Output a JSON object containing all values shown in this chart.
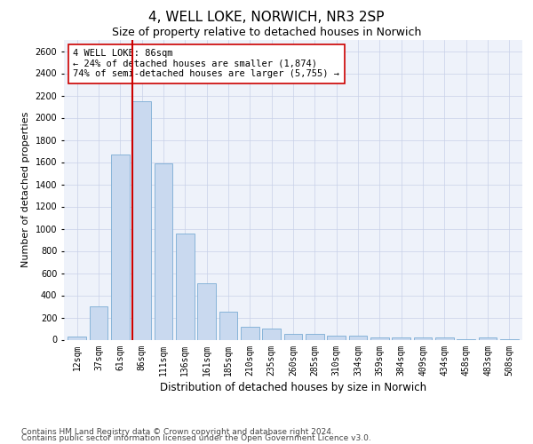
{
  "title": "4, WELL LOKE, NORWICH, NR3 2SP",
  "subtitle": "Size of property relative to detached houses in Norwich",
  "xlabel": "Distribution of detached houses by size in Norwich",
  "ylabel": "Number of detached properties",
  "categories": [
    "12sqm",
    "37sqm",
    "61sqm",
    "86sqm",
    "111sqm",
    "136sqm",
    "161sqm",
    "185sqm",
    "210sqm",
    "235sqm",
    "260sqm",
    "285sqm",
    "310sqm",
    "334sqm",
    "359sqm",
    "384sqm",
    "409sqm",
    "434sqm",
    "458sqm",
    "483sqm",
    "508sqm"
  ],
  "values": [
    25,
    300,
    1670,
    2150,
    1590,
    960,
    505,
    250,
    120,
    100,
    50,
    50,
    35,
    35,
    20,
    20,
    20,
    20,
    5,
    20,
    5
  ],
  "bar_color": "#c9d9ef",
  "bar_edge_color": "#7bacd4",
  "highlight_bar_index": 3,
  "highlight_line_color": "#cc0000",
  "annotation_text": "4 WELL LOKE: 86sqm\n← 24% of detached houses are smaller (1,874)\n74% of semi-detached houses are larger (5,755) →",
  "annotation_box_color": "#ffffff",
  "annotation_box_edge_color": "#cc0000",
  "ylim": [
    0,
    2700
  ],
  "yticks": [
    0,
    200,
    400,
    600,
    800,
    1000,
    1200,
    1400,
    1600,
    1800,
    2000,
    2200,
    2400,
    2600
  ],
  "background_color": "#ffffff",
  "axes_bg_color": "#eef2fa",
  "grid_color": "#c8d0e8",
  "footer_line1": "Contains HM Land Registry data © Crown copyright and database right 2024.",
  "footer_line2": "Contains public sector information licensed under the Open Government Licence v3.0.",
  "title_fontsize": 11,
  "subtitle_fontsize": 9,
  "xlabel_fontsize": 8.5,
  "ylabel_fontsize": 8,
  "tick_fontsize": 7,
  "annotation_fontsize": 7.5,
  "footer_fontsize": 6.5
}
